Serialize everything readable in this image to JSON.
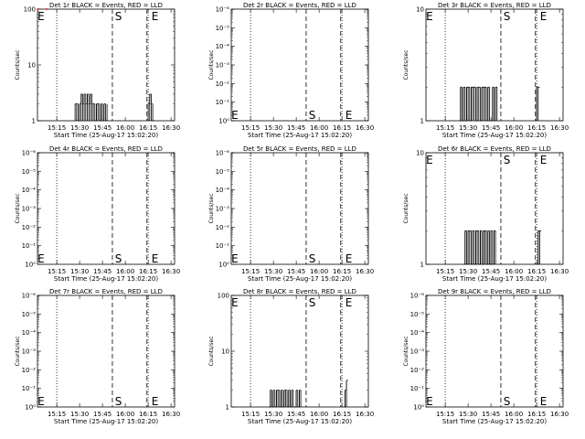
{
  "chart_data": [
    {
      "type": "line",
      "title": "Det 1r BLACK = Events, RED = LLD",
      "xlabel": "Start Time (25-Aug-17 15:02:20)",
      "ylabel": "Counts/sec",
      "scale": "log",
      "ylim": [
        1,
        100
      ],
      "yticks": [
        "1",
        "10",
        "100"
      ],
      "xticks": [
        "15:15",
        "15:30",
        "15:45",
        "16:00",
        "16:15",
        "16:30"
      ],
      "markers": [
        "E",
        "S",
        "E"
      ],
      "series": [
        {
          "color": "#000000",
          "x": [
            "15:27",
            "15:28",
            "15:29",
            "15:30",
            "15:31",
            "15:32",
            "15:33",
            "15:34",
            "15:35",
            "15:36",
            "15:37",
            "15:38",
            "15:39",
            "15:40",
            "15:41",
            "15:42",
            "15:43",
            "15:44",
            "15:45",
            "15:46",
            "15:47",
            "16:15",
            "16:16",
            "16:17",
            "16:18"
          ],
          "y": [
            2,
            2,
            1,
            2,
            3,
            2,
            3,
            2,
            3,
            2,
            3,
            2,
            2,
            1,
            2,
            2,
            1,
            2,
            1,
            2,
            1,
            2,
            3,
            2,
            1
          ]
        },
        {
          "color": "#ff0000",
          "x": [
            "15:02",
            "15:08"
          ],
          "y": [
            100,
            100
          ]
        }
      ]
    },
    {
      "type": "line",
      "title": "Det 2r BLACK = Events, RED = LLD",
      "xlabel": "Start Time (25-Aug-17 15:02:20)",
      "ylabel": "Counts/sec",
      "scale": "log",
      "ylim": [
        1,
        1000000
      ],
      "yticks": [
        "10⁰",
        "10⁻¹",
        "10⁻²",
        "10⁻³",
        "10⁻⁴",
        "10⁻⁵",
        "10⁻⁶"
      ],
      "xticks": [
        "15:15",
        "15:30",
        "15:45",
        "16:00",
        "16:15",
        "16:30"
      ],
      "markers": [
        "E",
        "S",
        "E"
      ],
      "series": []
    },
    {
      "type": "line",
      "title": "Det 3r BLACK = Events, RED = LLD",
      "xlabel": "Start Time (25-Aug-17 15:02:20)",
      "ylabel": "Counts/sec",
      "scale": "log",
      "ylim": [
        1,
        10
      ],
      "yticks": [
        "1",
        "10"
      ],
      "xticks": [
        "15:15",
        "15:30",
        "15:45",
        "16:00",
        "16:15",
        "16:30"
      ],
      "markers": [
        "E",
        "S",
        "E"
      ],
      "series": [
        {
          "color": "#000000",
          "x": [
            "15:24",
            "15:25",
            "15:26",
            "15:27",
            "15:28",
            "15:29",
            "15:30",
            "15:31",
            "15:32",
            "15:33",
            "15:34",
            "15:35",
            "15:36",
            "15:37",
            "15:38",
            "15:39",
            "15:40",
            "15:41",
            "15:42",
            "15:43",
            "15:44",
            "15:45",
            "15:46",
            "15:47",
            "15:48",
            "16:14",
            "16:15",
            "16:16"
          ],
          "y": [
            1,
            2,
            1,
            2,
            1,
            2,
            2,
            1,
            2,
            2,
            2,
            1,
            2,
            2,
            1,
            2,
            2,
            2,
            1,
            2,
            1,
            1,
            2,
            1,
            2,
            1,
            2,
            2
          ]
        }
      ]
    },
    {
      "type": "line",
      "title": "Det 4r BLACK = Events, RED = LLD",
      "xlabel": "Start Time (25-Aug-17 15:02:20)",
      "ylabel": "Counts/sec",
      "scale": "log",
      "ylim": [
        1,
        1000000
      ],
      "yticks": [
        "10⁰",
        "10⁻¹",
        "10⁻²",
        "10⁻³",
        "10⁻⁴",
        "10⁻⁵",
        "10⁻⁶"
      ],
      "xticks": [
        "15:15",
        "15:30",
        "15:45",
        "16:00",
        "16:15",
        "16:30"
      ],
      "markers": [
        "E",
        "S",
        "E"
      ],
      "series": []
    },
    {
      "type": "line",
      "title": "Det 5r BLACK = Events, RED = LLD",
      "xlabel": "Start Time (25-Aug-17 15:02:20)",
      "ylabel": "Counts/sec",
      "scale": "log",
      "ylim": [
        1,
        1000000
      ],
      "yticks": [
        "10⁰",
        "10⁻¹",
        "10⁻²",
        "10⁻³",
        "10⁻⁴",
        "10⁻⁵",
        "10⁻⁶"
      ],
      "xticks": [
        "15:15",
        "15:30",
        "15:45",
        "16:00",
        "16:15",
        "16:30"
      ],
      "markers": [
        "E",
        "S",
        "E"
      ],
      "series": []
    },
    {
      "type": "line",
      "title": "Det 6r BLACK = Events, RED = LLD",
      "xlabel": "Start Time (25-Aug-17 15:02:20)",
      "ylabel": "Counts/sec",
      "scale": "log",
      "ylim": [
        1,
        10
      ],
      "yticks": [
        "1",
        "10"
      ],
      "xticks": [
        "15:15",
        "15:30",
        "15:45",
        "16:00",
        "16:15",
        "16:30"
      ],
      "markers": [
        "E",
        "S",
        "E"
      ],
      "series": [
        {
          "color": "#000000",
          "x": [
            "15:27",
            "15:28",
            "15:29",
            "15:30",
            "15:31",
            "15:32",
            "15:33",
            "15:34",
            "15:35",
            "15:36",
            "15:37",
            "15:38",
            "15:39",
            "15:40",
            "15:41",
            "15:42",
            "15:43",
            "15:44",
            "15:45",
            "15:46",
            "15:47",
            "16:15",
            "16:16",
            "16:17"
          ],
          "y": [
            1,
            2,
            1,
            2,
            2,
            1,
            2,
            1,
            2,
            2,
            1,
            2,
            1,
            2,
            2,
            1,
            2,
            1,
            2,
            1,
            2,
            1,
            2,
            2
          ]
        }
      ]
    },
    {
      "type": "line",
      "title": "Det 7r BLACK = Events, RED = LLD",
      "xlabel": "Start Time (25-Aug-17 15:02:20)",
      "ylabel": "Counts/sec",
      "scale": "log",
      "ylim": [
        1,
        1000000
      ],
      "yticks": [
        "10⁰",
        "10⁻¹",
        "10⁻²",
        "10⁻³",
        "10⁻⁴",
        "10⁻⁵",
        "10⁻⁶"
      ],
      "xticks": [
        "15:15",
        "15:30",
        "15:45",
        "16:00",
        "16:15",
        "16:30"
      ],
      "markers": [
        "E",
        "S",
        "E"
      ],
      "series": []
    },
    {
      "type": "line",
      "title": "Det 8r BLACK = Events, RED = LLD",
      "xlabel": "Start Time (25-Aug-17 15:02:20)",
      "ylabel": "Counts/sec",
      "scale": "log",
      "ylim": [
        1,
        100
      ],
      "yticks": [
        "1",
        "10",
        "100"
      ],
      "xticks": [
        "15:15",
        "15:30",
        "15:45",
        "16:00",
        "16:15",
        "16:30"
      ],
      "markers": [
        "E",
        "S",
        "E"
      ],
      "series": [
        {
          "color": "#000000",
          "x": [
            "15:27",
            "15:28",
            "15:29",
            "15:30",
            "15:31",
            "15:32",
            "15:33",
            "15:34",
            "15:35",
            "15:36",
            "15:37",
            "15:38",
            "15:39",
            "15:40",
            "15:41",
            "15:42",
            "15:43",
            "15:44",
            "15:45",
            "15:46",
            "15:47",
            "16:16",
            "16:17",
            "16:18"
          ],
          "y": [
            1,
            2,
            1,
            2,
            1,
            2,
            2,
            1,
            2,
            1,
            2,
            2,
            1,
            2,
            1,
            2,
            1,
            1,
            2,
            1,
            2,
            1,
            2,
            3
          ]
        }
      ]
    },
    {
      "type": "line",
      "title": "Det 9r BLACK = Events, RED = LLD",
      "xlabel": "Start Time (25-Aug-17 15:02:20)",
      "ylabel": "Counts/sec",
      "scale": "log",
      "ylim": [
        1,
        1000000
      ],
      "yticks": [
        "10⁰",
        "10⁻¹",
        "10⁻²",
        "10⁻³",
        "10⁻⁴",
        "10⁻⁵",
        "10⁻⁶"
      ],
      "xticks": [
        "15:15",
        "15:30",
        "15:45",
        "16:00",
        "16:15",
        "16:30"
      ],
      "markers": [
        "E",
        "S",
        "E"
      ],
      "series": []
    }
  ]
}
